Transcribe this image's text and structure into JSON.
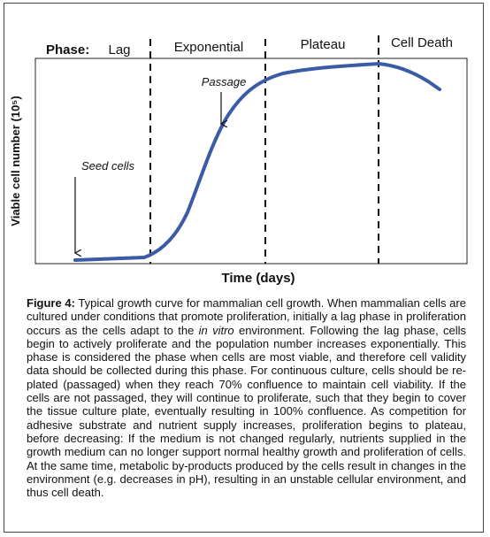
{
  "figure": {
    "phase_heading": "Phase:",
    "phases": [
      "Lag",
      "Exponential",
      "Plateau",
      "Cell Death"
    ],
    "annotations": {
      "seed": "Seed cells",
      "passage": "Passage"
    },
    "y_axis_label": "Viable cell number (10⁵)",
    "x_axis_label": "Time (days)"
  },
  "caption": {
    "label": "Figure 4:",
    "text_before": "Typical growth curve for mammalian cell growth. When mammalian cells are cultured under conditions that promote proliferation, initially a lag phase in proliferation occurs as the cells adapt to the",
    "emphasis": "in vitro",
    "text_after": "environment. Following the lag phase, cells begin to actively proliferate and the population number increases exponentially. This phase is considered the phase when cells are most viable, and therefore cell validity data should be collected during this phase. For continuous culture, cells should be re-plated (passaged) when they reach 70% confluence to maintain cell viability. If the cells are not passaged, they will continue to proliferate, such that they begin to cover the tissue culture plate, eventually resulting in 100% confluence. As competition for adhesive substrate and nutrient supply increases, proliferation begins to plateau, before decreasing: If the medium is not changed regularly, nutrients supplied in the growth medium can no longer support normal healthy growth and proliferation of cells. At the same time, metabolic by-products produced by the cells result in changes in the environment (e.g. decreases in pH), resulting in an unstable cellular environment, and thus cell death."
  }
}
